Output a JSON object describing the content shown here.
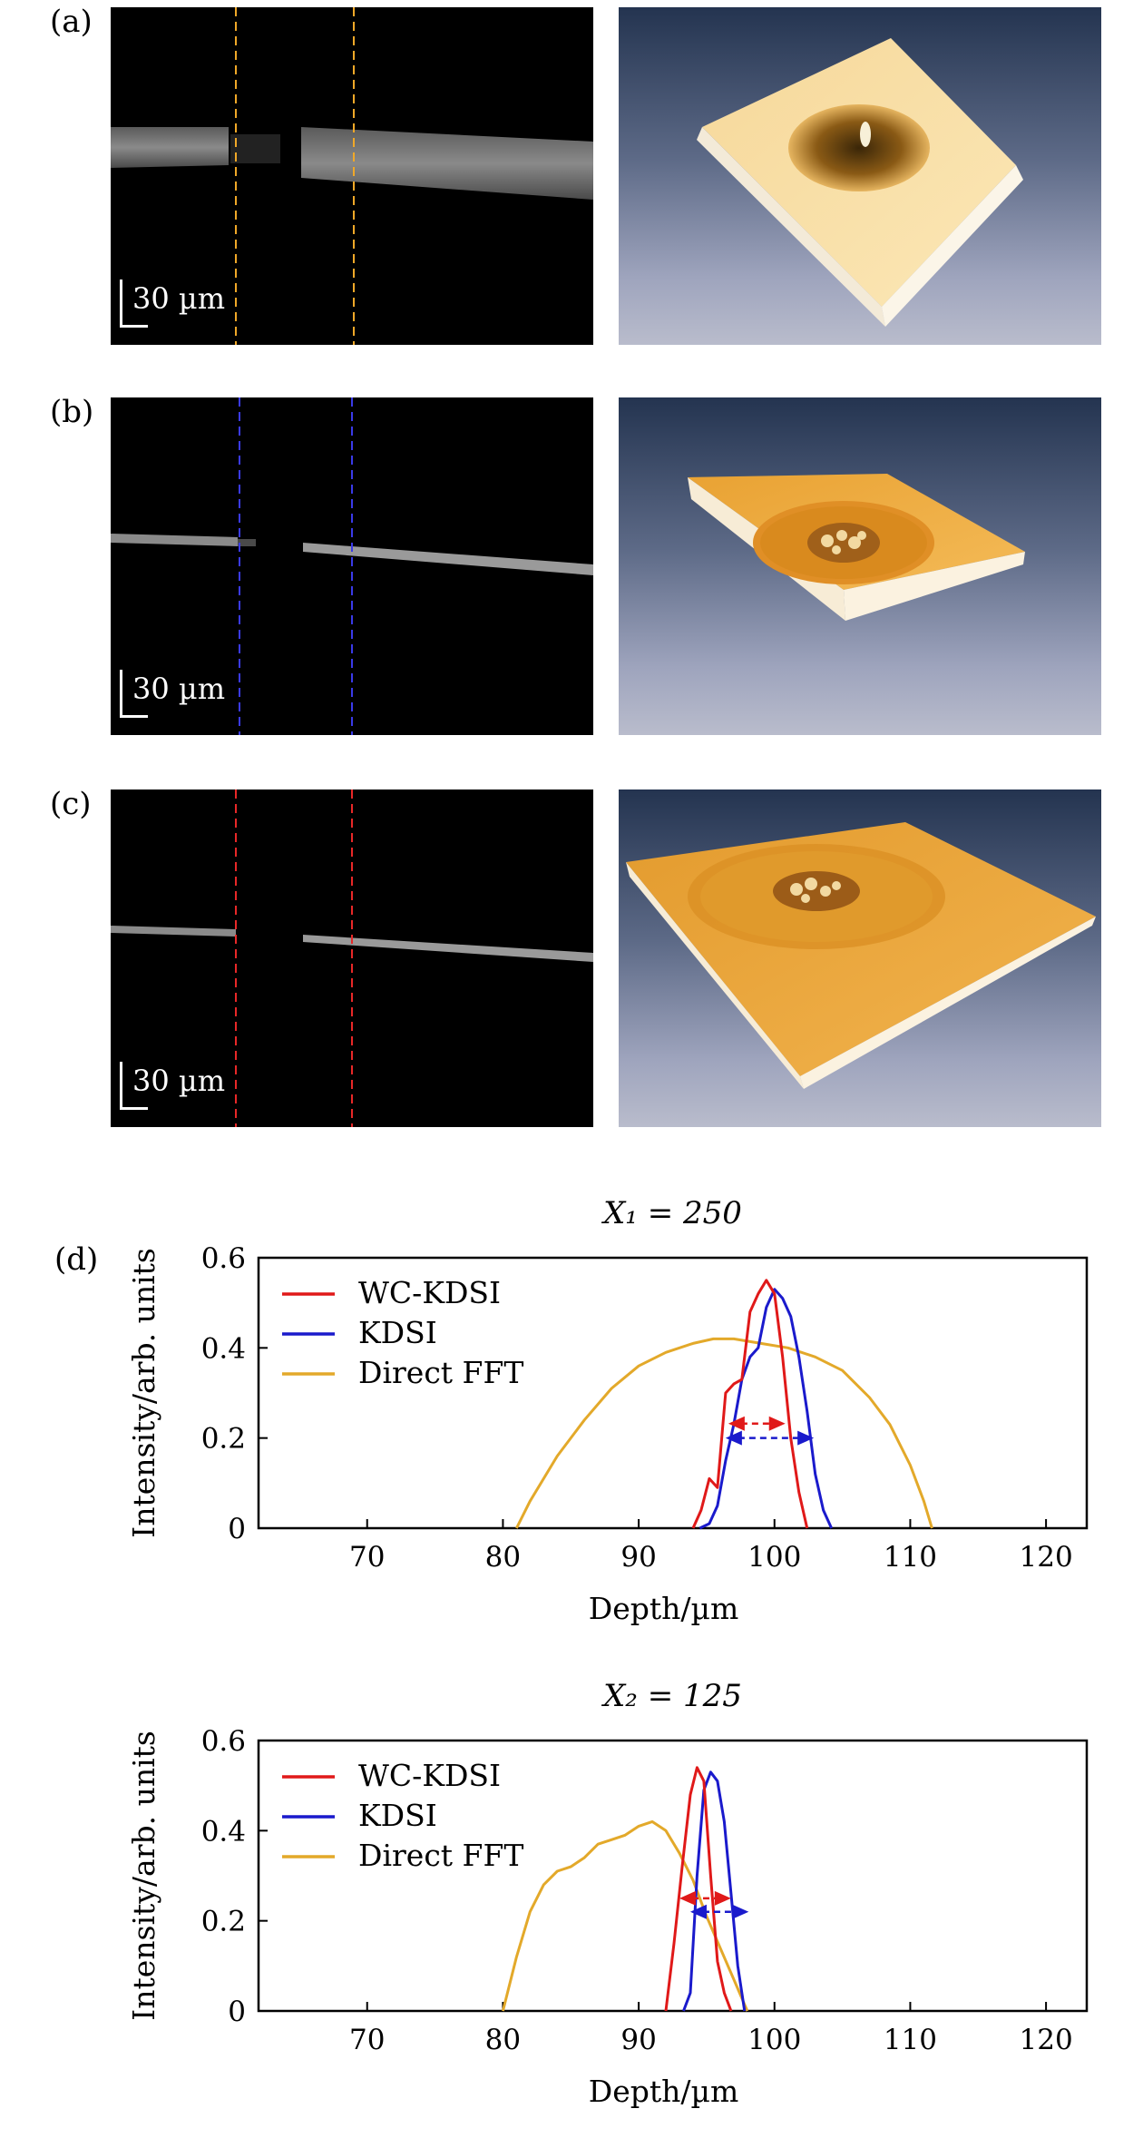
{
  "panels": [
    {
      "label": "(a)",
      "scale_bar": "30 µm",
      "line_color": "#f0a828"
    },
    {
      "label": "(b)",
      "scale_bar": "30 µm",
      "line_color": "#3a3ae8"
    },
    {
      "label": "(c)",
      "scale_bar": "30 µm",
      "line_color": "#e82828"
    }
  ],
  "panel_d_label": "(d)",
  "chart_data": [
    {
      "type": "line",
      "title": "X₁ = 250",
      "xlabel": "Depth/µm",
      "ylabel": "Intensity/arb. units",
      "xlim": [
        62,
        123
      ],
      "ylim": [
        0,
        0.6
      ],
      "xticks": [
        70,
        80,
        90,
        100,
        110,
        120
      ],
      "yticks": [
        0,
        0.2,
        0.4,
        0.6
      ],
      "ytick_labels": [
        "0",
        "0.2",
        "0.4",
        "0.6"
      ],
      "legend_position": "top-left",
      "series": [
        {
          "name": "WC-KDSI",
          "color": "#e01919",
          "x": [
            94.0,
            94.6,
            95.2,
            95.8,
            96.4,
            97.0,
            97.6,
            98.2,
            98.8,
            99.4,
            100.0,
            100.6,
            101.2,
            101.8,
            102.4
          ],
          "y": [
            0.0,
            0.04,
            0.11,
            0.09,
            0.3,
            0.32,
            0.33,
            0.48,
            0.52,
            0.55,
            0.52,
            0.38,
            0.2,
            0.08,
            0.0
          ]
        },
        {
          "name": "KDSI",
          "color": "#1a1acc",
          "x": [
            94.5,
            95.2,
            95.8,
            96.4,
            97.0,
            97.6,
            98.2,
            98.8,
            99.4,
            100.0,
            100.6,
            101.2,
            101.8,
            102.4,
            103.0,
            103.6,
            104.2
          ],
          "y": [
            0.0,
            0.01,
            0.05,
            0.15,
            0.23,
            0.33,
            0.38,
            0.4,
            0.49,
            0.53,
            0.51,
            0.47,
            0.38,
            0.26,
            0.12,
            0.04,
            0.0
          ]
        },
        {
          "name": "Direct FFT",
          "color": "#e3a92a",
          "x": [
            81.0,
            82.0,
            84.0,
            86.0,
            88.0,
            90.0,
            92.0,
            94.0,
            95.5,
            97.0,
            99.0,
            101.0,
            103.0,
            105.0,
            107.0,
            108.5,
            110.0,
            111.0,
            111.6
          ],
          "y": [
            0.0,
            0.06,
            0.16,
            0.24,
            0.31,
            0.36,
            0.39,
            0.41,
            0.42,
            0.42,
            0.41,
            0.4,
            0.38,
            0.35,
            0.29,
            0.23,
            0.14,
            0.06,
            0.0
          ]
        }
      ],
      "annotations": [
        {
          "color": "#e01919",
          "x1": 96.6,
          "x2": 100.8,
          "y": 0.232
        },
        {
          "color": "#1a1acc",
          "x1": 96.4,
          "x2": 102.9,
          "y": 0.2
        }
      ]
    },
    {
      "type": "line",
      "title": "X₂ = 125",
      "xlabel": "Depth/µm",
      "ylabel": "Intensity/arb. units",
      "xlim": [
        62,
        123
      ],
      "ylim": [
        0,
        0.6
      ],
      "xticks": [
        70,
        80,
        90,
        100,
        110,
        120
      ],
      "yticks": [
        0,
        0.2,
        0.4,
        0.6
      ],
      "ytick_labels": [
        "0",
        "0.2",
        "0.4",
        "0.6"
      ],
      "legend_position": "top-left",
      "series": [
        {
          "name": "WC-KDSI",
          "color": "#e01919",
          "x": [
            92.0,
            92.6,
            93.2,
            93.8,
            94.3,
            94.8,
            95.3,
            95.8,
            96.3,
            96.8
          ],
          "y": [
            0.0,
            0.15,
            0.32,
            0.48,
            0.54,
            0.51,
            0.3,
            0.11,
            0.04,
            0.0
          ]
        },
        {
          "name": "KDSI",
          "color": "#1a1acc",
          "x": [
            93.3,
            93.8,
            94.3,
            94.8,
            95.3,
            95.8,
            96.3,
            96.8,
            97.3,
            97.8
          ],
          "y": [
            0.0,
            0.04,
            0.3,
            0.49,
            0.53,
            0.51,
            0.42,
            0.26,
            0.1,
            0.0
          ]
        },
        {
          "name": "Direct FFT",
          "color": "#e3a92a",
          "x": [
            80.0,
            81.0,
            82.0,
            83.0,
            84.0,
            85.0,
            86.0,
            87.0,
            88.0,
            89.0,
            90.0,
            91.0,
            92.0,
            93.0,
            94.0,
            95.0,
            96.0,
            97.0,
            98.0
          ],
          "y": [
            0.0,
            0.12,
            0.22,
            0.28,
            0.31,
            0.32,
            0.34,
            0.37,
            0.38,
            0.39,
            0.41,
            0.42,
            0.4,
            0.35,
            0.29,
            0.21,
            0.14,
            0.07,
            0.0
          ]
        }
      ],
      "annotations": [
        {
          "color": "#e01919",
          "x1": 93.0,
          "x2": 96.8,
          "y": 0.25
        },
        {
          "color": "#1a1acc",
          "x1": 93.8,
          "x2": 98.1,
          "y": 0.22
        }
      ]
    }
  ]
}
